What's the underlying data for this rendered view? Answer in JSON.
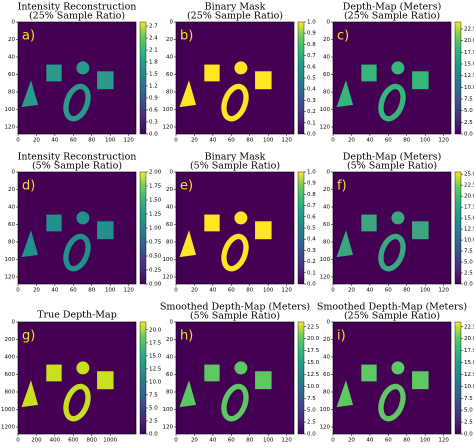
{
  "chart_data": [
    {
      "type": "heatmap",
      "label": "a)",
      "title": "Intensity Reconstruction",
      "subtitle": "(25% Sample Ratio)",
      "color": "#2a9a8a",
      "xlim": [
        0,
        128
      ],
      "ylim": [
        0,
        128
      ],
      "xticks": [
        0,
        20,
        40,
        60,
        80,
        100,
        120
      ],
      "yticks": [
        0,
        20,
        40,
        60,
        80,
        100,
        120
      ],
      "clim": [
        0,
        2.8
      ],
      "cticks": [
        {
          "value": 0,
          "label": "0.0"
        },
        0.3,
        0.6,
        0.9,
        1.2,
        1.5,
        1.8,
        2.1,
        2.4,
        2.7
      ]
    },
    {
      "type": "heatmap",
      "label": "b)",
      "title": "Binary Mask",
      "subtitle": "(25% Sample Ratio)",
      "color": "#fde725",
      "xlim": [
        0,
        128
      ],
      "ylim": [
        0,
        128
      ],
      "xticks": [
        0,
        20,
        40,
        60,
        80,
        100,
        120
      ],
      "yticks": [
        0,
        20,
        40,
        60,
        80,
        100,
        120
      ],
      "clim": [
        0,
        1
      ],
      "cticks": [
        {
          "value": 0,
          "label": "0.0"
        },
        0.1,
        0.2,
        0.3,
        0.4,
        0.5,
        0.6,
        0.7,
        0.8,
        0.9,
        {
          "value": 1,
          "label": "1.0"
        }
      ]
    },
    {
      "type": "heatmap",
      "label": "c)",
      "title": "Depth-Map (Meters)",
      "subtitle": "(25% Sample Ratio)",
      "color": "#35b779",
      "xlim": [
        0,
        128
      ],
      "ylim": [
        0,
        128
      ],
      "xticks": [
        0,
        20,
        40,
        60,
        80,
        100,
        120
      ],
      "yticks": [
        0,
        20,
        40,
        60,
        80,
        100,
        120
      ],
      "clim": [
        0,
        24
      ],
      "cticks": [
        {
          "value": 0,
          "label": "0.0"
        },
        2.5,
        {
          "value": 5,
          "label": "5.0"
        },
        7.5,
        {
          "value": 10,
          "label": "10.0"
        },
        12.5,
        {
          "value": 15,
          "label": "15.0"
        },
        17.5,
        {
          "value": 20,
          "label": "20.0"
        },
        22.5
      ]
    },
    {
      "type": "heatmap",
      "label": "d)",
      "title": "Intensity Reconstruction",
      "subtitle": "(5% Sample Ratio)",
      "color": "#21918c",
      "xlim": [
        0,
        128
      ],
      "ylim": [
        0,
        128
      ],
      "xticks": [
        0,
        20,
        40,
        60,
        80,
        100,
        120
      ],
      "yticks": [
        0,
        20,
        40,
        60,
        80,
        100,
        120
      ],
      "clim": [
        0,
        2
      ],
      "cticks": [
        {
          "value": 0,
          "label": "0.00"
        },
        0.25,
        {
          "value": 0.5,
          "label": "0.50"
        },
        0.75,
        {
          "value": 1,
          "label": "1.00"
        },
        1.25,
        {
          "value": 1.5,
          "label": "1.50"
        },
        1.75,
        {
          "value": 2,
          "label": "2.00"
        }
      ]
    },
    {
      "type": "heatmap",
      "label": "e)",
      "title": "Binary Mask",
      "subtitle": "(5% Sample Ratio)",
      "color": "#fde725",
      "xlim": [
        0,
        128
      ],
      "ylim": [
        0,
        128
      ],
      "xticks": [
        0,
        20,
        40,
        60,
        80,
        100,
        120
      ],
      "yticks": [
        0,
        20,
        40,
        60,
        80,
        100,
        120
      ],
      "clim": [
        0,
        1
      ],
      "cticks": [
        {
          "value": 0,
          "label": "0.0"
        },
        0.1,
        0.2,
        0.3,
        0.4,
        0.5,
        0.6,
        0.7,
        0.8,
        0.9,
        {
          "value": 1,
          "label": "1.0"
        }
      ]
    },
    {
      "type": "heatmap",
      "label": "f)",
      "title": "Depth-Map (Meters)",
      "subtitle": "(5% Sample Ratio)",
      "color": "#3aa87f",
      "xlim": [
        0,
        128
      ],
      "ylim": [
        0,
        128
      ],
      "xticks": [
        0,
        20,
        40,
        60,
        80,
        100,
        120
      ],
      "yticks": [
        0,
        20,
        40,
        60,
        80,
        100,
        120
      ],
      "clim": [
        0,
        25.5
      ],
      "cticks": [
        {
          "value": 0,
          "label": "0.0"
        },
        2.5,
        {
          "value": 5,
          "label": "5.0"
        },
        7.5,
        {
          "value": 10,
          "label": "10.0"
        },
        12.5,
        {
          "value": 15,
          "label": "15.0"
        },
        17.5,
        {
          "value": 20,
          "label": "20.0"
        },
        22.5,
        {
          "value": 25,
          "label": "25.0"
        }
      ]
    },
    {
      "type": "heatmap",
      "label": "g)",
      "title": "True Depth-Map",
      "color": "#c8e020",
      "xlim": [
        0,
        1280
      ],
      "ylim": [
        0,
        1280
      ],
      "xticks": [
        0,
        200,
        400,
        600,
        800,
        1000
      ],
      "yticks": [
        0,
        200,
        400,
        600,
        800,
        1000,
        1200
      ],
      "clim": [
        0,
        21.5
      ],
      "cticks": [
        {
          "value": 0,
          "label": "0.0"
        },
        2.5,
        {
          "value": 5,
          "label": "5.0"
        },
        7.5,
        {
          "value": 10,
          "label": "10.0"
        },
        12.5,
        {
          "value": 15,
          "label": "15.0"
        },
        17.5,
        {
          "value": 20,
          "label": "20.0"
        }
      ]
    },
    {
      "type": "heatmap",
      "label": "h)",
      "title": "Smoothed Depth-Map (Meters)",
      "subtitle": "(5% Sample Ratio)",
      "color": "#5ec962",
      "xlim": [
        0,
        128
      ],
      "ylim": [
        0,
        128
      ],
      "xticks": [
        0,
        20,
        40,
        60,
        80,
        100,
        120
      ],
      "yticks": [
        0,
        20,
        40,
        60,
        80,
        100,
        120
      ],
      "clim": [
        0,
        23.5
      ],
      "cticks": [
        {
          "value": 0,
          "label": "0.0"
        },
        2.5,
        {
          "value": 5,
          "label": "5.0"
        },
        7.5,
        {
          "value": 10,
          "label": "10.0"
        },
        12.5,
        {
          "value": 15,
          "label": "15.0"
        },
        17.5,
        {
          "value": 20,
          "label": "20.0"
        },
        22.5
      ]
    },
    {
      "type": "heatmap",
      "label": "i)",
      "title": "Smoothed Depth-Map (Meters)",
      "subtitle": "(25% Sample Ratio)",
      "color": "#5ec962",
      "xlim": [
        0,
        128
      ],
      "ylim": [
        0,
        128
      ],
      "xticks": [
        0,
        20,
        40,
        60,
        80,
        100,
        120
      ],
      "yticks": [
        0,
        20,
        40,
        60,
        80,
        100,
        120
      ],
      "clim": [
        0,
        23.5
      ],
      "cticks": [
        {
          "value": 0,
          "label": "0.0"
        },
        2.5,
        {
          "value": 5,
          "label": "5.0"
        },
        7.5,
        {
          "value": 10,
          "label": "10.0"
        },
        12.5,
        {
          "value": 15,
          "label": "15.0"
        },
        17.5,
        {
          "value": 20,
          "label": "20.0"
        },
        22.5
      ]
    }
  ]
}
